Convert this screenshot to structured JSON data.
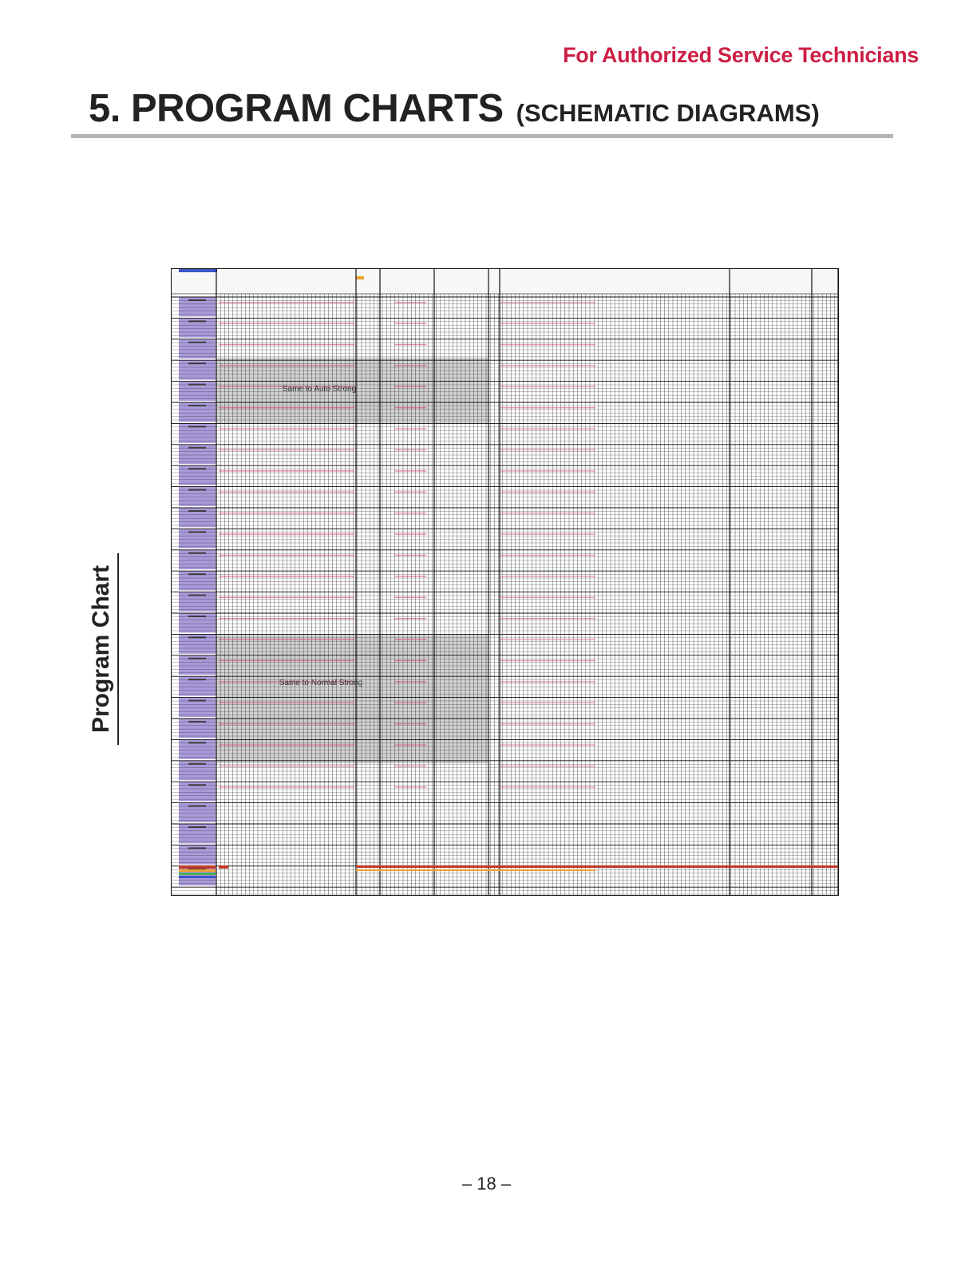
{
  "header": {
    "authorized": "For Authorized Service Technicians",
    "title": "5. PROGRAM CHARTS",
    "subtitle": "(SCHEMATIC DIAGRAMS)"
  },
  "side_label": "Program Chart",
  "chart": {
    "overlay_labels": [
      "Same to Auto Strong",
      "Same to Normal Strong"
    ],
    "colors": {
      "program_cell": "#a99ad9",
      "hatched_region": "#d3d3d3",
      "grid": "#111111",
      "accent_pink": "#d63c7c",
      "accent_red": "#c0392b",
      "accent_orange": "#f0a030",
      "accent_green": "#4caf50",
      "accent_blue": "#3a56c8"
    }
  },
  "footer": {
    "page_number": "– 18 –"
  }
}
